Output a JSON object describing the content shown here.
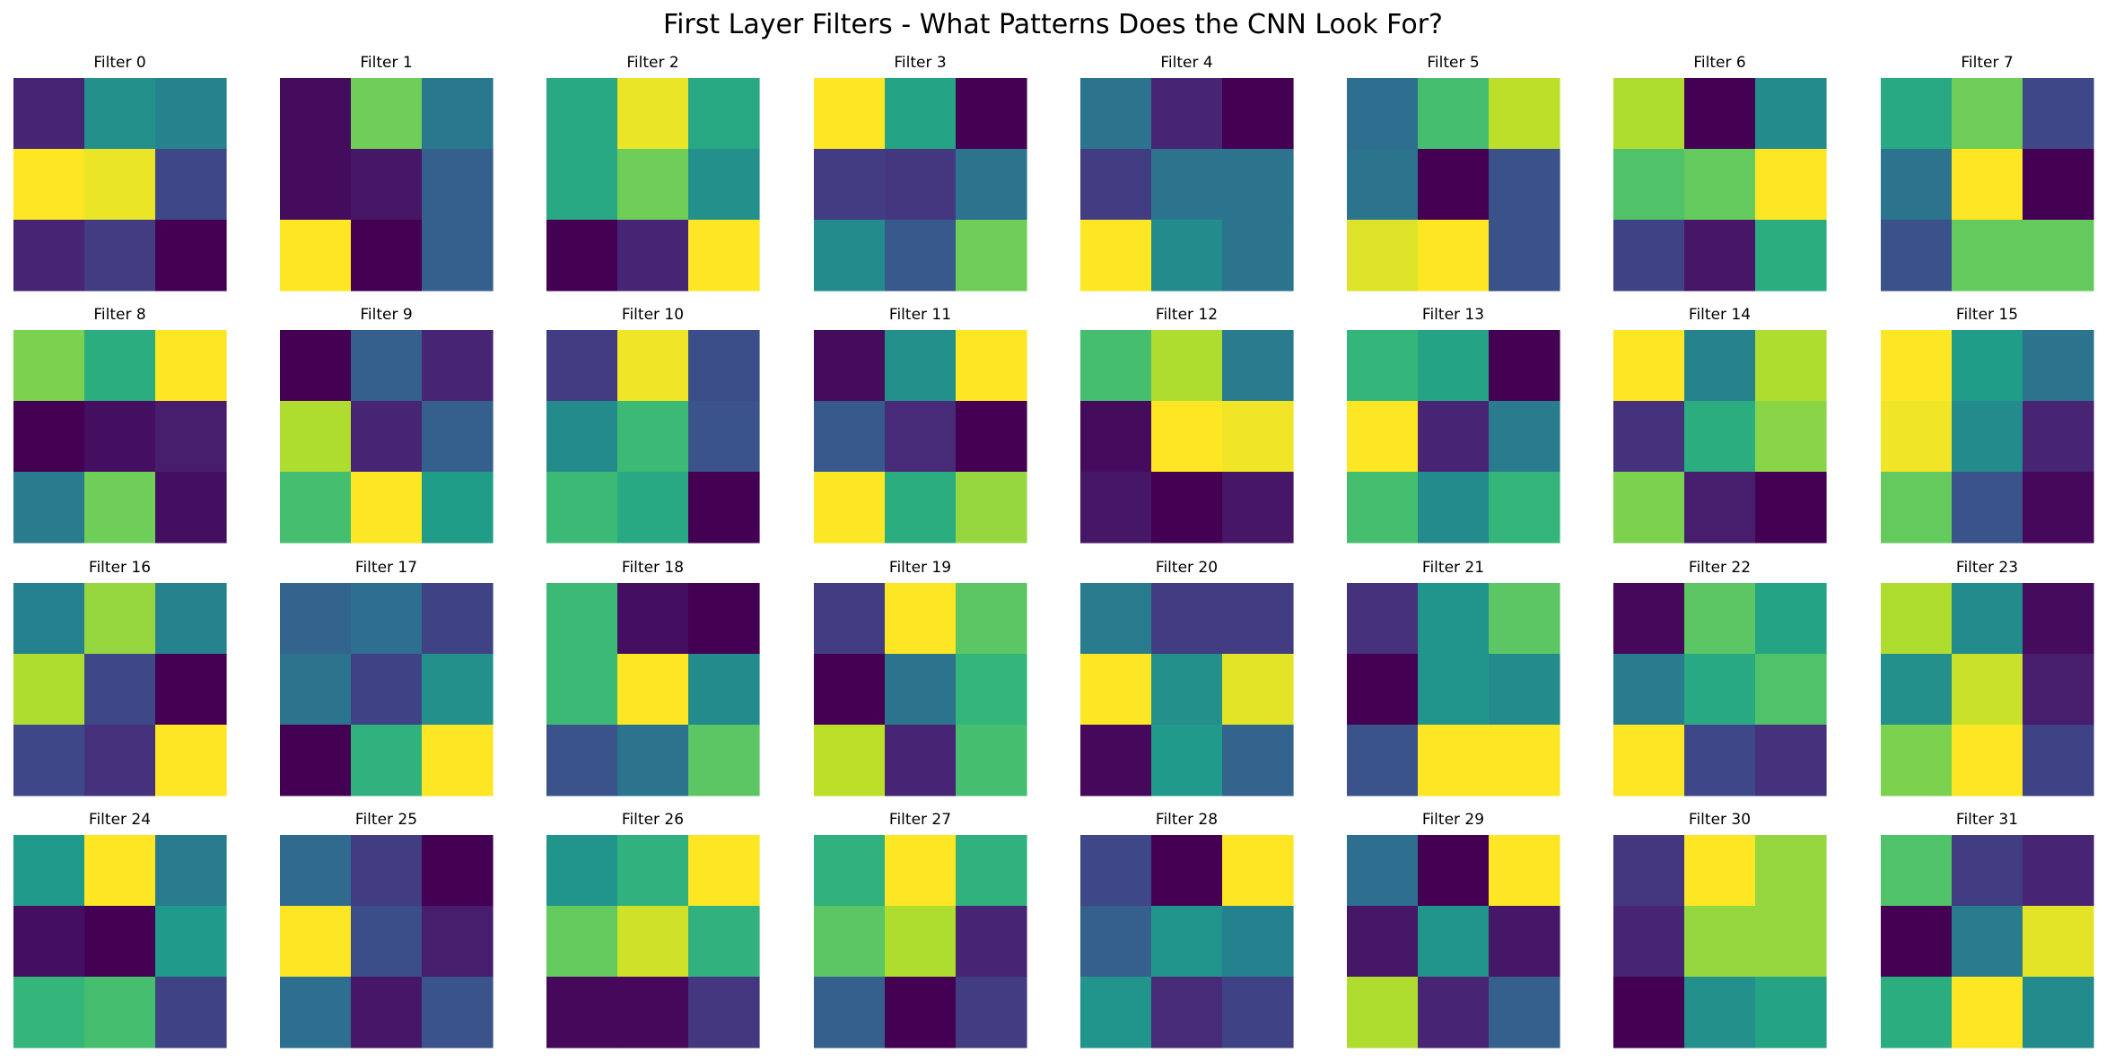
{
  "chart_data": {
    "type": "heatmap",
    "title": "First Layer Filters - What Patterns Does the CNN Look For?",
    "colormap": "viridis",
    "colormap_stops": [
      "#440154",
      "#482878",
      "#3e4989",
      "#31688e",
      "#26828e",
      "#1f9e89",
      "#35b779",
      "#6ece58",
      "#b5de2b",
      "#fde725"
    ],
    "grid": false,
    "axes": "off",
    "layout": {
      "rows": 4,
      "cols": 8
    },
    "value_range": [
      0,
      1
    ],
    "filters": [
      {
        "title": "Filter 0",
        "values": [
          [
            0.1,
            0.5,
            0.45
          ],
          [
            1.0,
            0.97,
            0.22
          ],
          [
            0.1,
            0.18,
            0.0
          ]
        ]
      },
      {
        "title": "Filter 1",
        "values": [
          [
            0.03,
            0.78,
            0.4
          ],
          [
            0.03,
            0.06,
            0.3
          ],
          [
            1.0,
            0.0,
            0.3
          ]
        ]
      },
      {
        "title": "Filter 2",
        "values": [
          [
            0.6,
            0.97,
            0.6
          ],
          [
            0.6,
            0.78,
            0.5
          ],
          [
            0.0,
            0.1,
            1.0
          ]
        ]
      },
      {
        "title": "Filter 3",
        "values": [
          [
            1.0,
            0.58,
            0.0
          ],
          [
            0.18,
            0.16,
            0.38
          ],
          [
            0.48,
            0.28,
            0.78
          ]
        ]
      },
      {
        "title": "Filter 4",
        "values": [
          [
            0.38,
            0.1,
            0.0
          ],
          [
            0.18,
            0.38,
            0.38
          ],
          [
            1.0,
            0.48,
            0.38
          ]
        ]
      },
      {
        "title": "Filter 5",
        "values": [
          [
            0.36,
            0.7,
            0.9
          ],
          [
            0.38,
            0.0,
            0.25
          ],
          [
            0.95,
            1.0,
            0.25
          ]
        ]
      },
      {
        "title": "Filter 6",
        "values": [
          [
            0.88,
            0.0,
            0.48
          ],
          [
            0.72,
            0.76,
            1.0
          ],
          [
            0.2,
            0.06,
            0.62
          ]
        ]
      },
      {
        "title": "Filter 7",
        "values": [
          [
            0.6,
            0.78,
            0.22
          ],
          [
            0.38,
            1.0,
            0.0
          ],
          [
            0.25,
            0.76,
            0.76
          ]
        ]
      },
      {
        "title": "Filter 8",
        "values": [
          [
            0.8,
            0.62,
            1.0
          ],
          [
            0.0,
            0.04,
            0.08
          ],
          [
            0.42,
            0.78,
            0.04
          ]
        ]
      },
      {
        "title": "Filter 9",
        "values": [
          [
            0.0,
            0.3,
            0.1
          ],
          [
            0.88,
            0.1,
            0.3
          ],
          [
            0.7,
            1.0,
            0.55
          ]
        ]
      },
      {
        "title": "Filter 10",
        "values": [
          [
            0.18,
            0.98,
            0.24
          ],
          [
            0.48,
            0.68,
            0.26
          ],
          [
            0.68,
            0.6,
            0.0
          ]
        ]
      },
      {
        "title": "Filter 11",
        "values": [
          [
            0.03,
            0.5,
            1.0
          ],
          [
            0.28,
            0.12,
            0.0
          ],
          [
            1.0,
            0.62,
            0.84
          ]
        ]
      },
      {
        "title": "Filter 12",
        "values": [
          [
            0.7,
            0.88,
            0.42
          ],
          [
            0.03,
            1.0,
            0.98
          ],
          [
            0.06,
            0.0,
            0.06
          ]
        ]
      },
      {
        "title": "Filter 13",
        "values": [
          [
            0.66,
            0.58,
            0.0
          ],
          [
            1.0,
            0.1,
            0.42
          ],
          [
            0.7,
            0.48,
            0.66
          ]
        ]
      },
      {
        "title": "Filter 14",
        "values": [
          [
            1.0,
            0.45,
            0.88
          ],
          [
            0.14,
            0.62,
            0.82
          ],
          [
            0.8,
            0.08,
            0.0
          ]
        ]
      },
      {
        "title": "Filter 15",
        "values": [
          [
            1.0,
            0.55,
            0.38
          ],
          [
            0.98,
            0.48,
            0.1
          ],
          [
            0.76,
            0.26,
            0.02
          ]
        ]
      },
      {
        "title": "Filter 16",
        "values": [
          [
            0.44,
            0.84,
            0.45
          ],
          [
            0.88,
            0.22,
            0.0
          ],
          [
            0.22,
            0.14,
            1.0
          ]
        ]
      },
      {
        "title": "Filter 17",
        "values": [
          [
            0.32,
            0.36,
            0.2
          ],
          [
            0.38,
            0.2,
            0.5
          ],
          [
            0.0,
            0.64,
            1.0
          ]
        ]
      },
      {
        "title": "Filter 18",
        "values": [
          [
            0.68,
            0.04,
            0.0
          ],
          [
            0.68,
            1.0,
            0.48
          ],
          [
            0.26,
            0.38,
            0.74
          ]
        ]
      },
      {
        "title": "Filter 19",
        "values": [
          [
            0.18,
            1.0,
            0.74
          ],
          [
            0.0,
            0.38,
            0.66
          ],
          [
            0.9,
            0.1,
            0.7
          ]
        ]
      },
      {
        "title": "Filter 20",
        "values": [
          [
            0.42,
            0.18,
            0.18
          ],
          [
            1.0,
            0.5,
            0.96
          ],
          [
            0.02,
            0.54,
            0.32
          ]
        ]
      },
      {
        "title": "Filter 21",
        "values": [
          [
            0.14,
            0.52,
            0.74
          ],
          [
            0.0,
            0.52,
            0.48
          ],
          [
            0.26,
            1.0,
            1.0
          ]
        ]
      },
      {
        "title": "Filter 22",
        "values": [
          [
            0.02,
            0.74,
            0.58
          ],
          [
            0.42,
            0.6,
            0.72
          ],
          [
            1.0,
            0.22,
            0.14
          ]
        ]
      },
      {
        "title": "Filter 23",
        "values": [
          [
            0.88,
            0.48,
            0.03
          ],
          [
            0.5,
            0.92,
            0.08
          ],
          [
            0.8,
            1.0,
            0.2
          ]
        ]
      },
      {
        "title": "Filter 24",
        "values": [
          [
            0.54,
            1.0,
            0.42
          ],
          [
            0.04,
            0.0,
            0.54
          ],
          [
            0.66,
            0.7,
            0.2
          ]
        ]
      },
      {
        "title": "Filter 25",
        "values": [
          [
            0.34,
            0.18,
            0.0
          ],
          [
            1.0,
            0.24,
            0.08
          ],
          [
            0.36,
            0.06,
            0.26
          ]
        ]
      },
      {
        "title": "Filter 26",
        "values": [
          [
            0.52,
            0.64,
            1.0
          ],
          [
            0.76,
            0.93,
            0.64
          ],
          [
            0.02,
            0.02,
            0.16
          ]
        ]
      },
      {
        "title": "Filter 27",
        "values": [
          [
            0.64,
            1.0,
            0.64
          ],
          [
            0.74,
            0.88,
            0.1
          ],
          [
            0.3,
            0.0,
            0.18
          ]
        ]
      },
      {
        "title": "Filter 28",
        "values": [
          [
            0.22,
            0.0,
            1.0
          ],
          [
            0.3,
            0.52,
            0.44
          ],
          [
            0.52,
            0.12,
            0.2
          ]
        ]
      },
      {
        "title": "Filter 29",
        "values": [
          [
            0.36,
            0.0,
            1.0
          ],
          [
            0.06,
            0.52,
            0.06
          ],
          [
            0.88,
            0.1,
            0.3
          ]
        ]
      },
      {
        "title": "Filter 30",
        "values": [
          [
            0.16,
            1.0,
            0.84
          ],
          [
            0.1,
            0.84,
            0.84
          ],
          [
            0.0,
            0.5,
            0.58
          ]
        ]
      },
      {
        "title": "Filter 31",
        "values": [
          [
            0.72,
            0.18,
            0.1
          ],
          [
            0.0,
            0.42,
            0.96
          ],
          [
            0.62,
            1.0,
            0.48
          ]
        ]
      }
    ]
  }
}
